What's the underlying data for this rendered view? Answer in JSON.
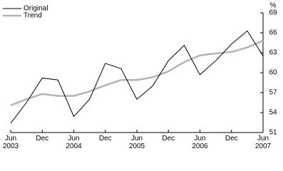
{
  "chart_data": {
    "type": "line",
    "y_label": "%",
    "categories": [
      "Jun 2003",
      null,
      "Dec",
      null,
      "Jun 2004",
      null,
      "Dec",
      null,
      "Jun 2005",
      null,
      "Dec",
      null,
      "Jun 2006",
      null,
      "Dec",
      null,
      "Jun 2007"
    ],
    "series": [
      {
        "name": "Original",
        "color": "#000000",
        "values": [
          52.4,
          55.5,
          59.2,
          58.9,
          53.4,
          56.0,
          61.4,
          60.6,
          56.0,
          58.0,
          61.8,
          64.1,
          59.7,
          61.8,
          64.3,
          66.3,
          62.5
        ]
      },
      {
        "name": "Trend",
        "color": "#b4b4b4",
        "values": [
          55.1,
          56.0,
          56.8,
          56.5,
          56.5,
          57.2,
          58.1,
          58.9,
          58.9,
          59.3,
          60.2,
          61.6,
          62.6,
          62.9,
          63.1,
          63.8,
          64.8
        ]
      }
    ],
    "ylim": [
      51,
      69
    ],
    "yticks": [
      51,
      54,
      57,
      60,
      63,
      66,
      69
    ]
  }
}
